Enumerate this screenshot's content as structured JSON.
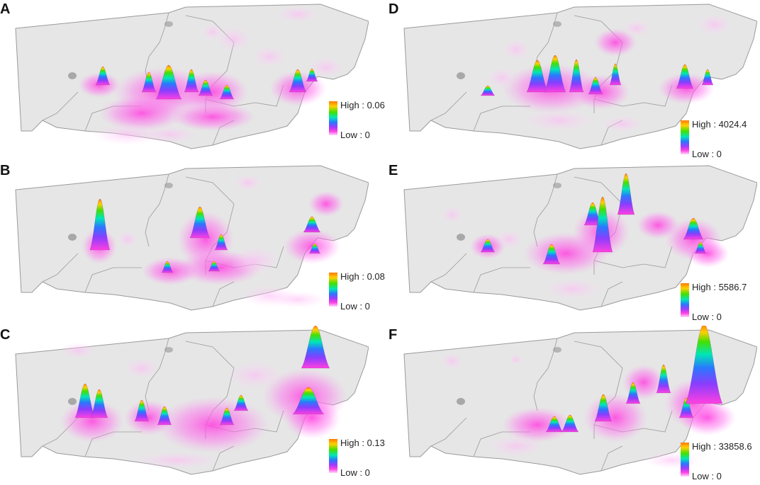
{
  "panels": [
    {
      "id": "A",
      "legend_high": "High : 0.06",
      "legend_low": "Low : 0"
    },
    {
      "id": "B",
      "legend_high": "High : 0.08",
      "legend_low": "Low : 0"
    },
    {
      "id": "C",
      "legend_high": "High : 0.13",
      "legend_low": "Low : 0"
    },
    {
      "id": "D",
      "legend_high": "High : 4024.4",
      "legend_low": "Low : 0"
    },
    {
      "id": "E",
      "legend_high": "High : 5586.7",
      "legend_low": "Low : 0"
    },
    {
      "id": "F",
      "legend_high": "High : 33858.6",
      "legend_low": "Low : 0"
    }
  ],
  "colors": {
    "map_fill": "#e6e6e6",
    "map_stroke": "#9a9a9a",
    "density_low": "#ff40e0",
    "density_high": "#ff7b00"
  }
}
